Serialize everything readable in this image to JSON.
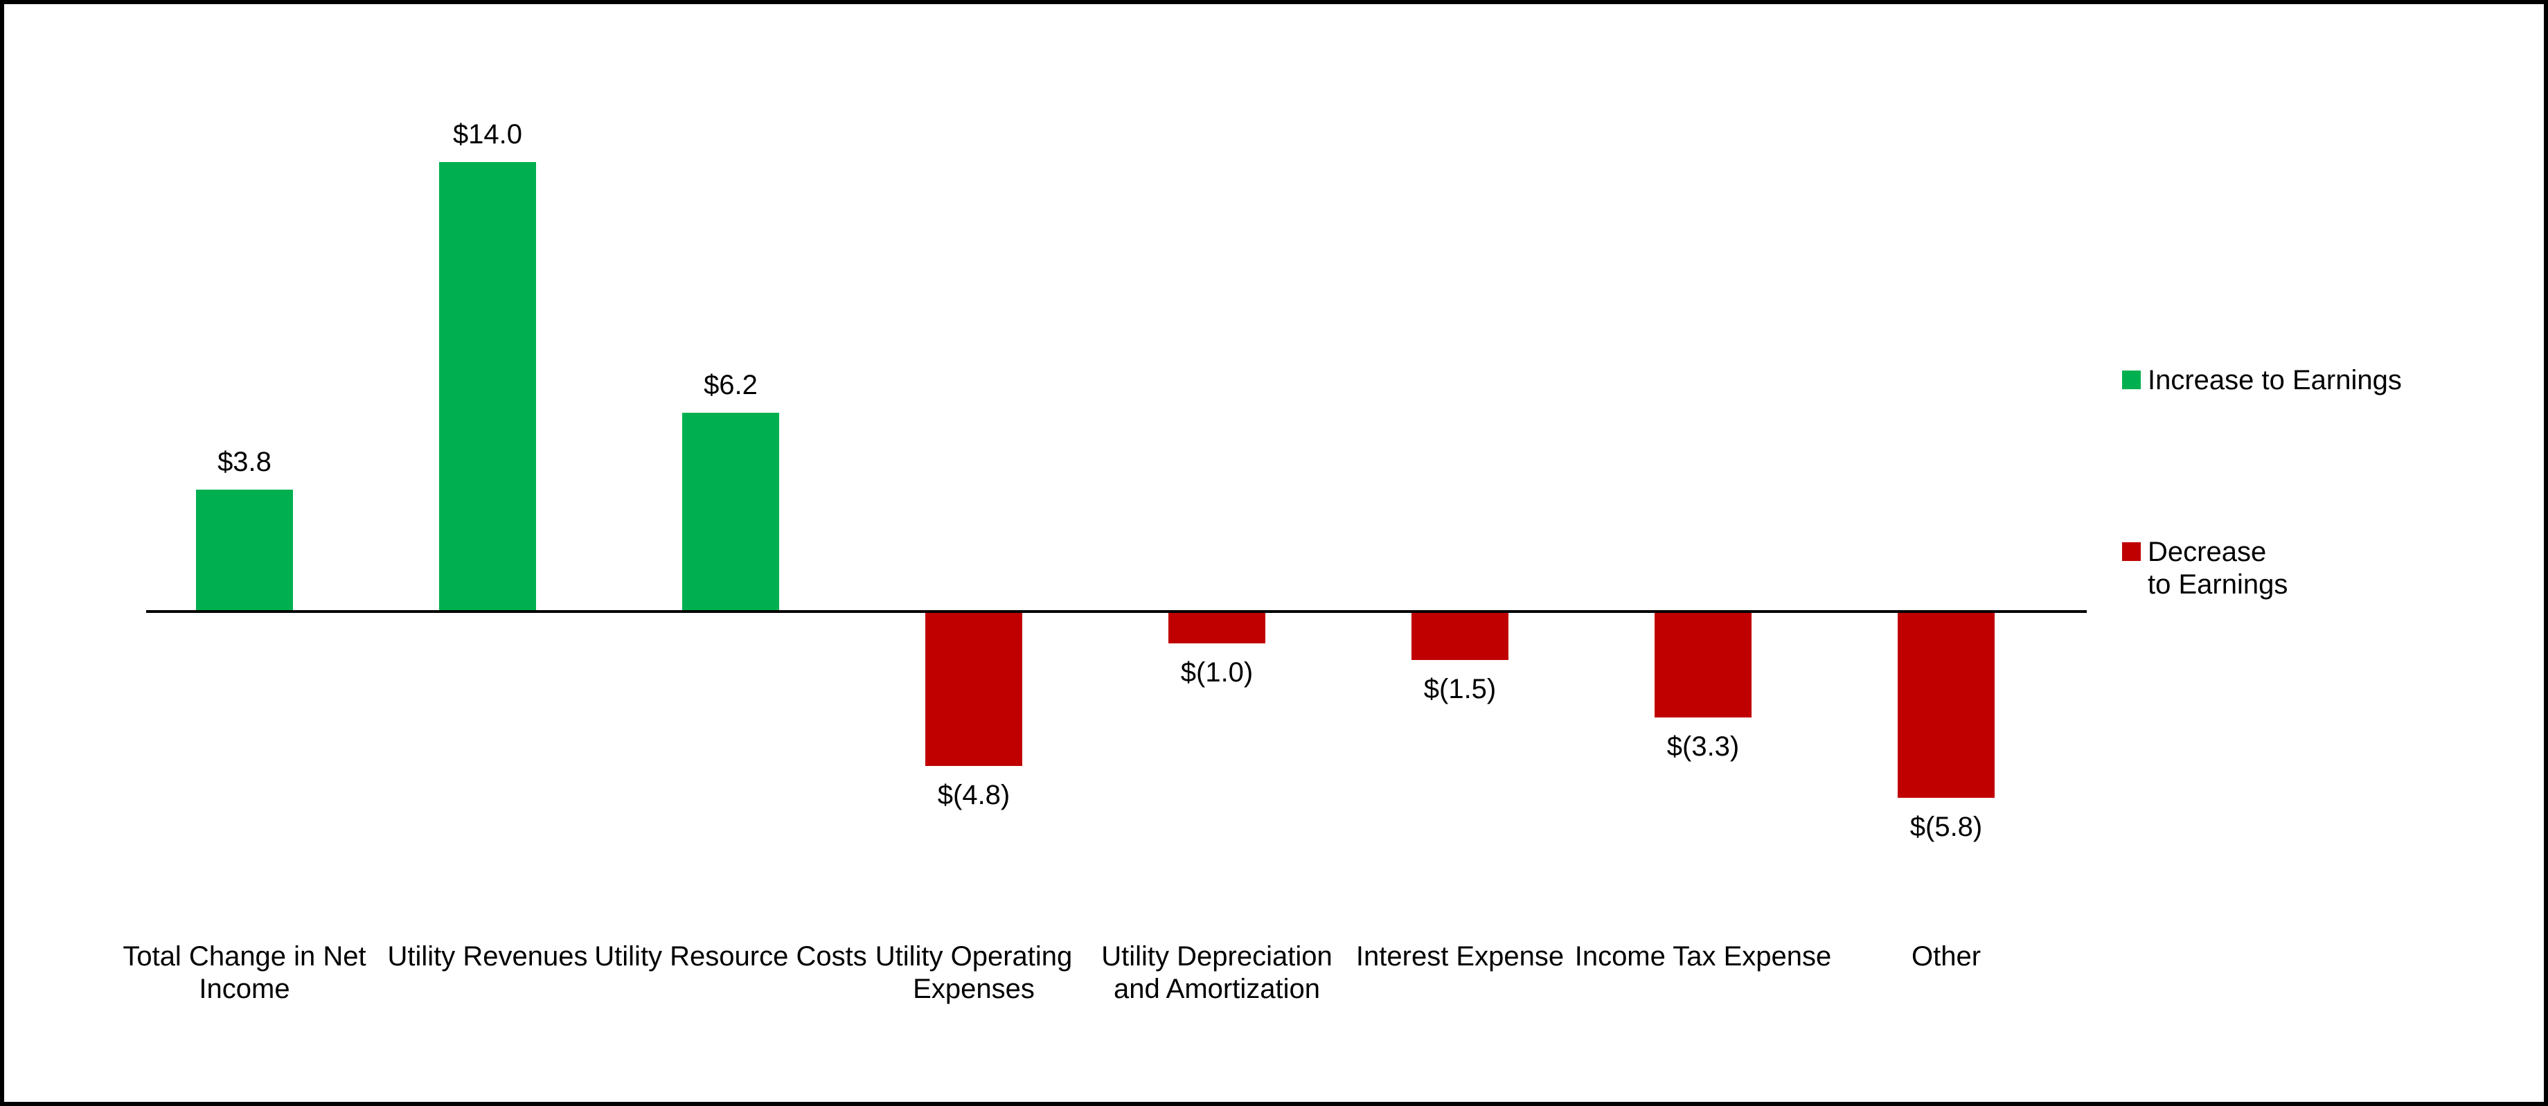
{
  "chart_data": {
    "type": "bar",
    "title": "",
    "xlabel": "",
    "ylabel": "",
    "categories": [
      "Total Change in Net Income",
      "Utility Revenues",
      "Utility Resource Costs",
      "Utility Operating Expenses",
      "Utility Depreciation and Amortization",
      "Interest Expense",
      "Income Tax Expense",
      "Other"
    ],
    "values": [
      3.8,
      14.0,
      6.2,
      -4.8,
      -1.0,
      -1.5,
      -3.3,
      -5.8
    ],
    "value_labels": [
      "$3.8",
      "$14.0",
      "$6.2",
      "$(4.8)",
      "$(1.0)",
      "$(1.5)",
      "$(3.3)",
      "$(5.8)"
    ],
    "series": [
      {
        "name": "Increase to Earnings",
        "color": "#00B050",
        "applies_to": "positive_values"
      },
      {
        "name": "Decrease to Earnings",
        "color": "#C00000",
        "applies_to": "negative_values"
      }
    ],
    "baseline": 0,
    "ylim": [
      -6.5,
      15
    ],
    "gridlines": false,
    "y_axis_visible": false,
    "x_axis_line_visible": true,
    "legend_position": "right"
  },
  "colors": {
    "background": "#FFFFFF",
    "border": "#000000",
    "axis": "#000000",
    "text": "#000000",
    "increase": "#00B050",
    "decrease": "#C00000"
  }
}
